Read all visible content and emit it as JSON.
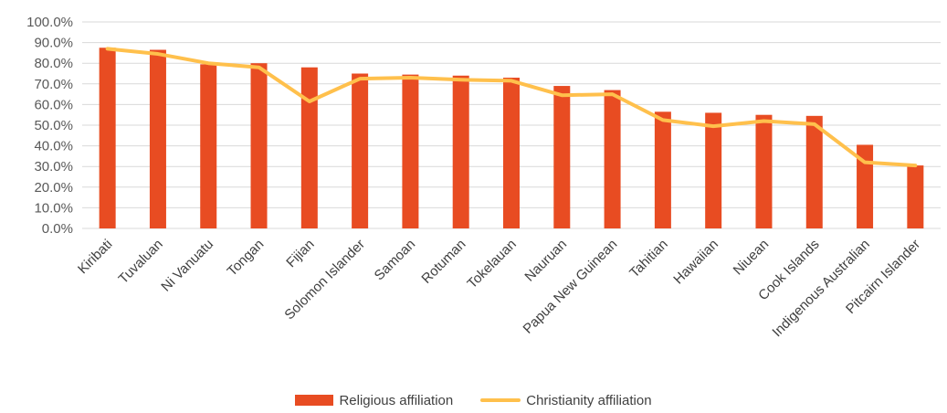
{
  "chart_data": {
    "type": "bar",
    "categories": [
      "Kiribati",
      "Tuvaluan",
      "Ni Vanuatu",
      "Tongan",
      "Fijian",
      "Solomon Islander",
      "Samoan",
      "Rotuman",
      "Tokelauan",
      "Nauruan",
      "Papua New Guinean",
      "Tahitian",
      "Hawaiian",
      "Niuean",
      "Cook Islands",
      "Indigenous Australian",
      "Pitcairn Islander"
    ],
    "series": [
      {
        "name": "Religious affiliation",
        "type": "bar",
        "color": "#e84c22",
        "values": [
          87.5,
          86.5,
          79.5,
          80.0,
          78.0,
          75.0,
          74.5,
          74.0,
          73.0,
          69.0,
          67.0,
          56.5,
          56.0,
          55.0,
          54.5,
          40.5,
          30.5
        ]
      },
      {
        "name": "Christianity affiliation",
        "type": "line",
        "color": "#ffc04c",
        "values": [
          87.0,
          84.5,
          80.0,
          78.0,
          61.5,
          72.5,
          73.0,
          72.0,
          71.5,
          64.5,
          65.0,
          52.5,
          49.5,
          52.0,
          50.5,
          32.0,
          30.5
        ]
      }
    ],
    "ylim": [
      0,
      100
    ],
    "yticks": [
      "0.0%",
      "10.0%",
      "20.0%",
      "30.0%",
      "40.0%",
      "50.0%",
      "60.0%",
      "70.0%",
      "80.0%",
      "90.0%",
      "100.0%"
    ],
    "grid": true,
    "legend_position": "bottom"
  }
}
